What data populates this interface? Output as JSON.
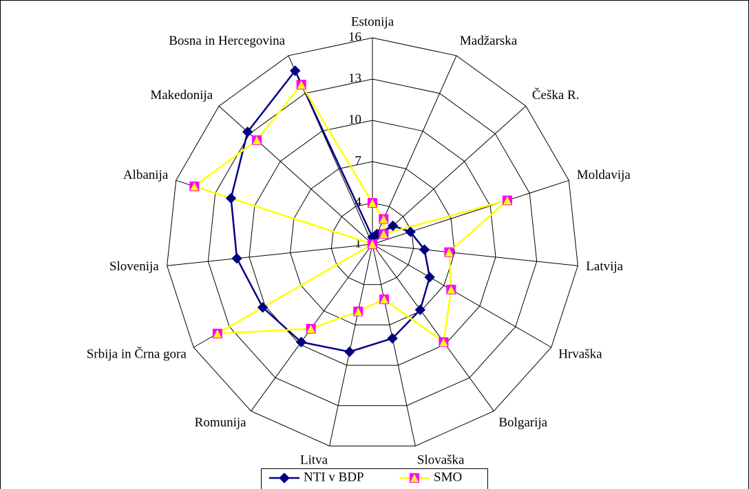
{
  "chart_data": {
    "type": "radar",
    "categories": [
      "Estonija",
      "Madžarska",
      "Češka R.",
      "Moldavija",
      "Latvija",
      "Hrvaška",
      "Bolgarija",
      "Slovaška",
      "Litva",
      "Romunija",
      "Srbija in Črna gora",
      "Slovenija",
      "Albanija",
      "Makedonija",
      "Bosna in Hercegovina"
    ],
    "series": [
      {
        "name": "NTI v BDP",
        "color": "#000080",
        "values": [
          1.5,
          1.8,
          3,
          3.9,
          4.8,
          5.8,
          6.9,
          8,
          9,
          9.8,
          10.2,
          10.9,
          11.8,
          13.2,
          14.8
        ]
      },
      {
        "name": "SMO",
        "color": "#ffff00",
        "marker_color": "#ff00ff",
        "values": [
          4,
          3,
          2.1,
          11.3,
          6.6,
          7.6,
          9.8,
          5.1,
          6,
          8.6,
          14,
          1,
          14.6,
          12.3,
          13.7
        ]
      }
    ],
    "rlim": [
      1,
      16
    ],
    "rticks": [
      1,
      4,
      7,
      10,
      13,
      16
    ],
    "grid": true,
    "legend": "bottom"
  }
}
